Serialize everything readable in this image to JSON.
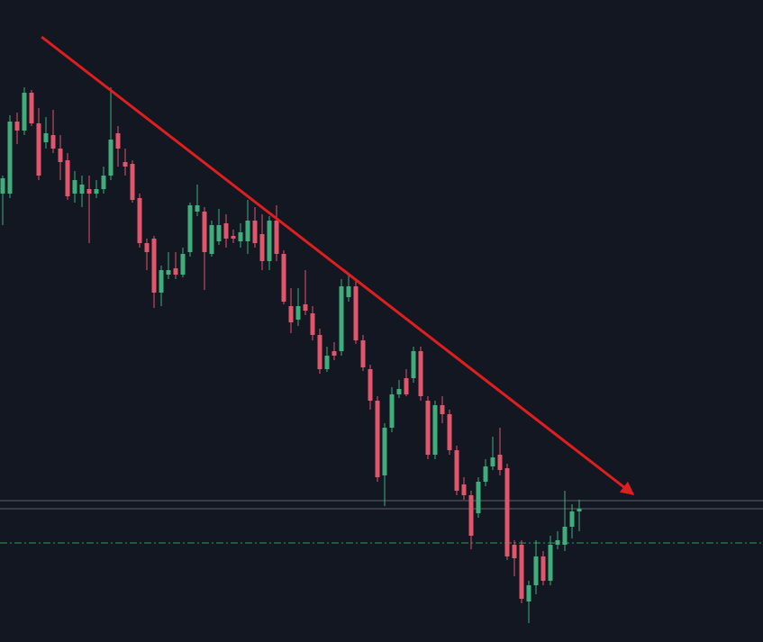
{
  "chart_data": {
    "type": "candlestick",
    "up_color": "#3fae7a",
    "down_color": "#e0566a",
    "background": "#131722",
    "xlim": [
      -0.375,
      105.5
    ],
    "ylim": [
      0,
      713
    ],
    "open": [
      498,
      498,
      578,
      568,
      610,
      576,
      555,
      563,
      548,
      535,
      498,
      498,
      503,
      498,
      503,
      518,
      565,
      533,
      531,
      493,
      443,
      448,
      388,
      408,
      415,
      408,
      433,
      478,
      478,
      431,
      445,
      465,
      451,
      445,
      445,
      468,
      453,
      423,
      468,
      431,
      373,
      358,
      375,
      365,
      341,
      303,
      323,
      323,
      383,
      395,
      335,
      303,
      268,
      185,
      238,
      275,
      293,
      293,
      323,
      268,
      208,
      263,
      253,
      213,
      175,
      163,
      143,
      178,
      195,
      208,
      193,
      108,
      108,
      45,
      63,
      95,
      68,
      108,
      108,
      128,
      145
    ],
    "close": [
      515,
      578,
      568,
      610,
      576,
      518,
      565,
      548,
      533,
      495,
      513,
      508,
      498,
      503,
      518,
      558,
      548,
      528,
      491,
      443,
      433,
      388,
      413,
      413,
      408,
      431,
      485,
      485,
      433,
      463,
      463,
      448,
      448,
      455,
      468,
      443,
      423,
      468,
      431,
      378,
      355,
      373,
      368,
      341,
      303,
      318,
      318,
      395,
      395,
      335,
      305,
      268,
      183,
      238,
      275,
      281,
      275,
      323,
      273,
      208,
      263,
      253,
      213,
      168,
      163,
      118,
      178,
      195,
      205,
      191,
      95,
      93,
      48,
      63,
      95,
      68,
      108,
      113,
      128,
      145,
      148
    ],
    "high": [
      518,
      585,
      588,
      616,
      613,
      593,
      583,
      591,
      563,
      543,
      523,
      518,
      518,
      513,
      528,
      616,
      573,
      548,
      535,
      498,
      448,
      451,
      418,
      433,
      433,
      438,
      488,
      508,
      483,
      468,
      481,
      475,
      458,
      465,
      491,
      483,
      475,
      473,
      485,
      435,
      393,
      393,
      413,
      373,
      348,
      328,
      333,
      403,
      408,
      401,
      341,
      308,
      273,
      243,
      283,
      291,
      303,
      328,
      328,
      273,
      268,
      273,
      258,
      218,
      183,
      168,
      183,
      203,
      228,
      238,
      198,
      113,
      113,
      68,
      113,
      101,
      118,
      123,
      168,
      153,
      158
    ],
    "low": [
      463,
      493,
      553,
      563,
      573,
      513,
      548,
      543,
      513,
      491,
      488,
      483,
      443,
      493,
      498,
      513,
      528,
      518,
      488,
      438,
      413,
      371,
      373,
      403,
      403,
      405,
      428,
      473,
      391,
      428,
      441,
      438,
      443,
      438,
      431,
      438,
      413,
      413,
      423,
      375,
      343,
      351,
      363,
      335,
      298,
      300,
      313,
      318,
      378,
      331,
      301,
      258,
      178,
      151,
      233,
      271,
      273,
      288,
      268,
      203,
      203,
      243,
      208,
      163,
      158,
      103,
      138,
      173,
      191,
      185,
      91,
      73,
      43,
      21,
      53,
      63,
      63,
      103,
      101,
      115,
      123
    ],
    "levels": [
      {
        "value": 157,
        "color": "#5d606b",
        "style": "solid"
      },
      {
        "value": 148,
        "color": "#5d606b",
        "style": "solid"
      },
      {
        "value": 110,
        "color": "#2e9e4f",
        "style": "dashdot"
      }
    ],
    "trendline": {
      "x": [
        5.4,
        87.5
      ],
      "y": [
        672,
        164
      ],
      "color": "#e01e1e"
    }
  }
}
